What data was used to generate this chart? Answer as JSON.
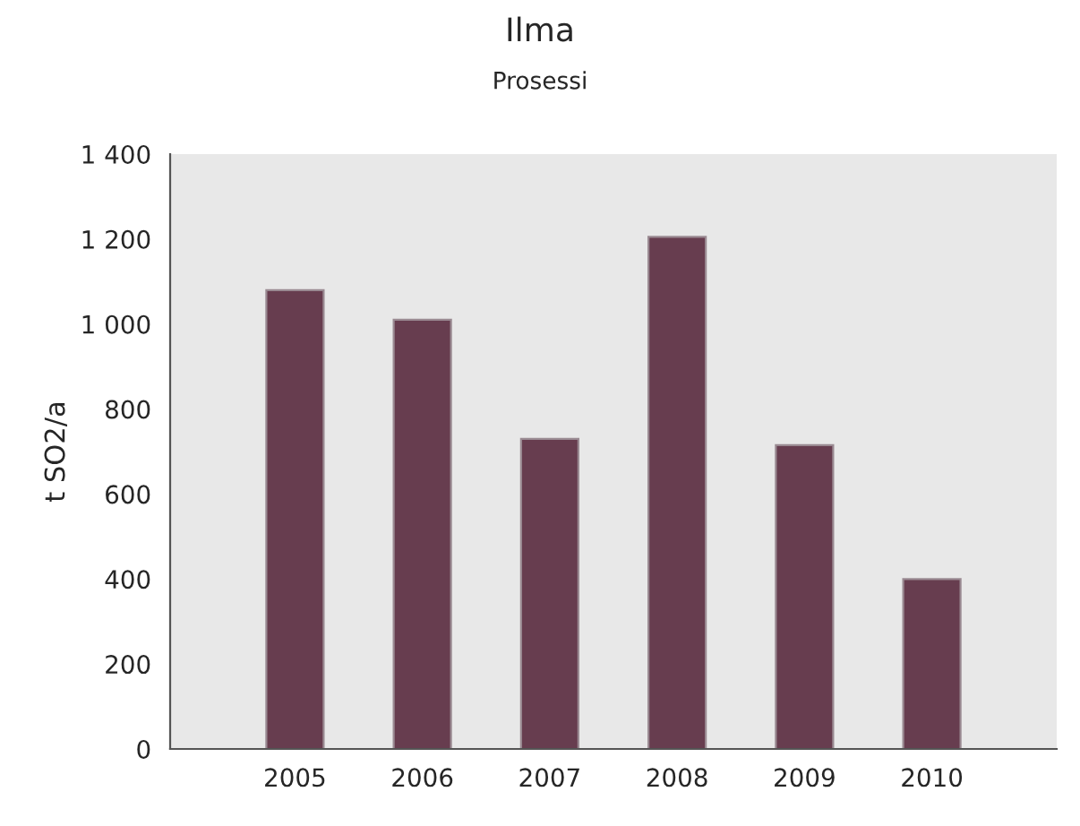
{
  "chart_data": {
    "type": "bar",
    "title": "Ilma",
    "subtitle": "Prosessi",
    "ylabel": "t SO2/a",
    "categories": [
      "2005",
      "2006",
      "2007",
      "2008",
      "2009",
      "2010"
    ],
    "values": [
      1080,
      1010,
      730,
      1205,
      715,
      400
    ],
    "color": "#673d4f",
    "ylim": [
      0,
      1400
    ],
    "yticks": [
      0,
      200,
      400,
      600,
      800,
      {
        "value": 1000,
        "label": "1 000"
      },
      {
        "value": 1200,
        "label": "1 200"
      },
      {
        "value": 1400,
        "label": "1 400"
      }
    ],
    "grid": false,
    "legend": false
  }
}
